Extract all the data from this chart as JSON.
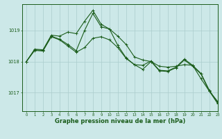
{
  "background_color": "#cce8e8",
  "grid_color": "#aacccc",
  "line_color": "#1a5c1a",
  "xlabel": "Graphe pression niveau de la mer (hPa)",
  "xlabel_fontsize": 6.0,
  "yticks": [
    1017,
    1018,
    1019
  ],
  "xlim": [
    -0.5,
    23
  ],
  "ylim": [
    1016.4,
    1019.85
  ],
  "hours": [
    0,
    1,
    2,
    3,
    4,
    5,
    6,
    7,
    8,
    9,
    10,
    11,
    12,
    13,
    14,
    15,
    16,
    17,
    18,
    19,
    20,
    21,
    22,
    23
  ],
  "line1": [
    1018.0,
    1018.4,
    1018.38,
    1018.85,
    1018.82,
    1018.95,
    1018.9,
    1019.3,
    1019.65,
    1019.2,
    1019.05,
    1018.82,
    1018.55,
    1018.15,
    1018.05,
    1018.0,
    1017.85,
    1017.82,
    1017.85,
    1017.9,
    1017.88,
    1017.45,
    1017.05,
    1016.72
  ],
  "line2": [
    1018.0,
    1018.38,
    1018.36,
    1018.82,
    1018.72,
    1018.55,
    1018.35,
    1019.0,
    1019.55,
    1019.12,
    1019.05,
    1018.52,
    1018.12,
    1017.9,
    1017.88,
    1018.02,
    1017.72,
    1017.7,
    1017.82,
    1018.08,
    1017.88,
    1017.62,
    1017.08,
    1016.68
  ],
  "line3": [
    1018.0,
    1018.36,
    1018.34,
    1018.8,
    1018.7,
    1018.5,
    1018.3,
    1018.45,
    1018.75,
    1018.8,
    1018.7,
    1018.45,
    1018.1,
    1017.9,
    1017.75,
    1018.0,
    1017.7,
    1017.68,
    1017.8,
    1018.05,
    1017.85,
    1017.6,
    1017.05,
    1016.65
  ]
}
